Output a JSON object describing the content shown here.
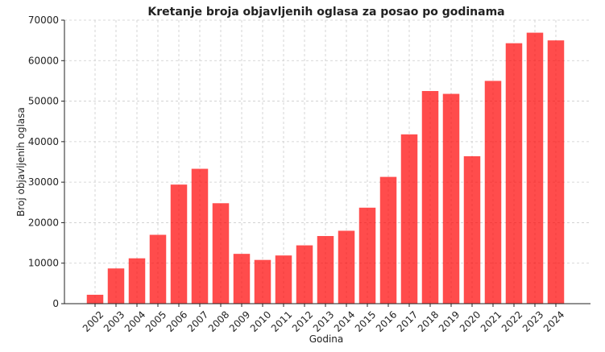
{
  "chart_data": {
    "type": "bar",
    "title": "Kretanje broja objavljenih oglasa za posao po godinama",
    "xlabel": "Godina",
    "ylabel": "Broj objavljenih oglasa",
    "categories": [
      "2002",
      "2003",
      "2004",
      "2005",
      "2006",
      "2007",
      "2008",
      "2009",
      "2010",
      "2011",
      "2012",
      "2013",
      "2014",
      "2015",
      "2016",
      "2017",
      "2018",
      "2019",
      "2020",
      "2021",
      "2022",
      "2023",
      "2024"
    ],
    "values": [
      2200,
      8700,
      11200,
      17000,
      29400,
      33300,
      24800,
      12300,
      10800,
      11900,
      14400,
      16700,
      18000,
      23700,
      31300,
      41800,
      52500,
      51800,
      36400,
      55000,
      64300,
      66900,
      65000
    ],
    "ylim": [
      0,
      70000
    ],
    "yticks": [
      "0",
      "10000",
      "20000",
      "30000",
      "40000",
      "50000",
      "60000",
      "70000"
    ],
    "bar_color": "#ff0000",
    "bar_opacity": 0.7,
    "grid": true,
    "legend": false
  }
}
